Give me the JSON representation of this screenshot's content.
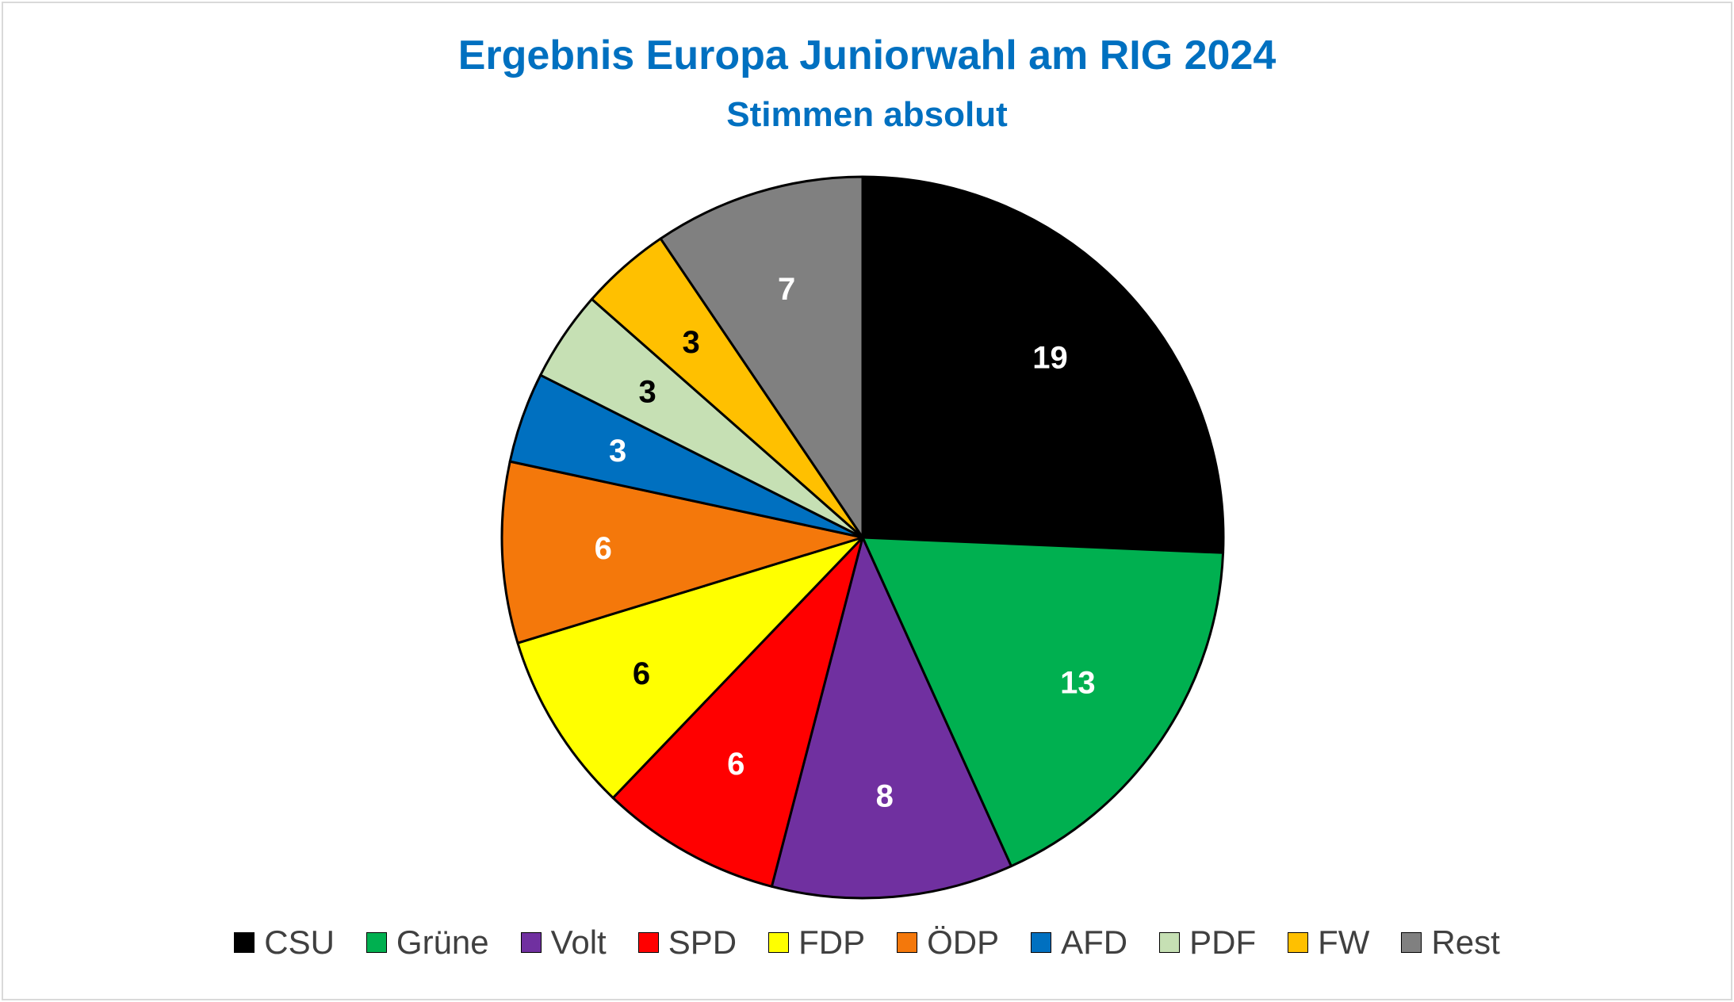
{
  "chart_data": {
    "type": "pie",
    "title": "Ergebnis Europa Juniorwahl am RIG 2024",
    "subtitle": "Stimmen absolut",
    "legend_position": "bottom",
    "slices": [
      {
        "label": "CSU",
        "value": 19,
        "color": "#000000",
        "label_color": "#ffffff"
      },
      {
        "label": "Grüne",
        "value": 13,
        "color": "#00b050",
        "label_color": "#ffffff"
      },
      {
        "label": "Volt",
        "value": 8,
        "color": "#7030a0",
        "label_color": "#ffffff"
      },
      {
        "label": "SPD",
        "value": 6,
        "color": "#ff0000",
        "label_color": "#ffffff"
      },
      {
        "label": "FDP",
        "value": 6,
        "color": "#ffff00",
        "label_color": "#000000"
      },
      {
        "label": "ÖDP",
        "value": 6,
        "color": "#f4780b",
        "label_color": "#ffffff"
      },
      {
        "label": "AFD",
        "value": 3,
        "color": "#0070c0",
        "label_color": "#ffffff"
      },
      {
        "label": "PDF",
        "value": 3,
        "color": "#c6e0b4",
        "label_color": "#000000"
      },
      {
        "label": "FW",
        "value": 3,
        "color": "#ffc000",
        "label_color": "#000000"
      },
      {
        "label": "Rest",
        "value": 7,
        "color": "#808080",
        "label_color": "#ffffff"
      }
    ]
  }
}
